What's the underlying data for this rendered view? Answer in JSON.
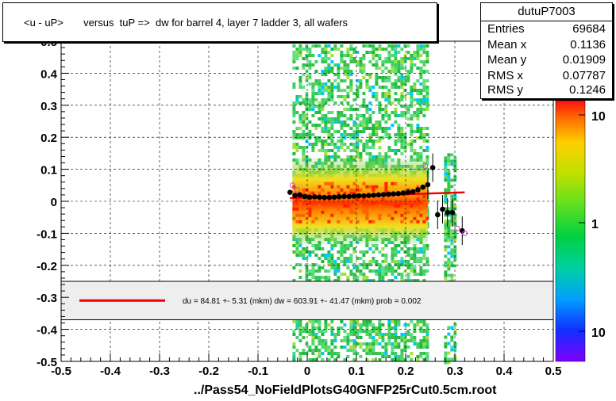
{
  "title": "<u - uP>       versus  tuP =>  dw for barrel 4, layer 7 ladder 3, all wafers",
  "stats": {
    "name": "dutuP7003",
    "rows": [
      {
        "label": "Entries",
        "value": "69684"
      },
      {
        "label": "Mean x",
        "value": "0.1136"
      },
      {
        "label": "Mean y",
        "value": "0.01909"
      },
      {
        "label": "RMS x",
        "value": "0.07787"
      },
      {
        "label": "RMS y",
        "value": "0.1246"
      }
    ]
  },
  "fit_text": "du =   84.81 +-  5.31 (mkm) dw =  603.91 +- 41.47 (mkm) prob = 0.002",
  "footer": "../Pass54_NoFieldPlotsG40GNFP25rCut0.5cm.root",
  "colors": {
    "fit_line": "#ee0000",
    "points": "#000000",
    "open_markers": "#cc44cc",
    "legend_bg": "#eeeeee"
  },
  "chart_data": {
    "type": "heatmap",
    "xlim": [
      -0.5,
      0.5
    ],
    "ylim": [
      -0.5,
      0.5
    ],
    "x_ticks": [
      "-0.5",
      "-0.4",
      "-0.3",
      "-0.2",
      "-0.1",
      "0",
      "0.1",
      "0.2",
      "0.3",
      "0.4",
      "0.5"
    ],
    "y_ticks": [
      "-0.5",
      "-0.4",
      "-0.3",
      "-0.2",
      "-0.1",
      "0",
      "0.1",
      "0.2",
      "0.3",
      "0.4",
      "0.5"
    ],
    "z_scale": "log",
    "z_ticks": [
      "10",
      "1",
      "10"
    ],
    "grid": true,
    "profile_points": [
      {
        "x": -0.035,
        "y": 0.028
      },
      {
        "x": -0.025,
        "y": 0.018
      },
      {
        "x": -0.015,
        "y": 0.02
      },
      {
        "x": -0.005,
        "y": 0.015
      },
      {
        "x": 0.005,
        "y": 0.013
      },
      {
        "x": 0.015,
        "y": 0.014
      },
      {
        "x": 0.025,
        "y": 0.013
      },
      {
        "x": 0.035,
        "y": 0.012
      },
      {
        "x": 0.045,
        "y": 0.012
      },
      {
        "x": 0.055,
        "y": 0.013
      },
      {
        "x": 0.065,
        "y": 0.014
      },
      {
        "x": 0.075,
        "y": 0.015
      },
      {
        "x": 0.085,
        "y": 0.015
      },
      {
        "x": 0.095,
        "y": 0.016
      },
      {
        "x": 0.105,
        "y": 0.017
      },
      {
        "x": 0.115,
        "y": 0.017
      },
      {
        "x": 0.125,
        "y": 0.018
      },
      {
        "x": 0.135,
        "y": 0.019
      },
      {
        "x": 0.145,
        "y": 0.02
      },
      {
        "x": 0.155,
        "y": 0.021
      },
      {
        "x": 0.165,
        "y": 0.022
      },
      {
        "x": 0.175,
        "y": 0.023
      },
      {
        "x": 0.185,
        "y": 0.024
      },
      {
        "x": 0.195,
        "y": 0.026
      },
      {
        "x": 0.205,
        "y": 0.028
      },
      {
        "x": 0.215,
        "y": 0.03
      },
      {
        "x": 0.225,
        "y": 0.036
      },
      {
        "x": 0.235,
        "y": 0.044
      },
      {
        "x": 0.245,
        "y": 0.052
      },
      {
        "x": 0.255,
        "y": 0.105
      },
      {
        "x": 0.275,
        "y": -0.025
      },
      {
        "x": 0.285,
        "y": -0.035
      },
      {
        "x": 0.295,
        "y": -0.035
      },
      {
        "x": 0.265,
        "y": -0.042
      },
      {
        "x": 0.315,
        "y": -0.092
      }
    ],
    "fit_line": {
      "x": [
        -0.035,
        0.32
      ],
      "y": [
        0.01,
        0.028
      ]
    },
    "legend_line": "du"
  }
}
